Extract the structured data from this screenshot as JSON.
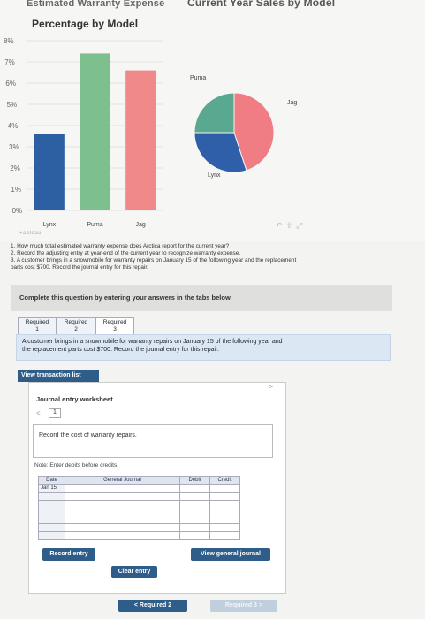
{
  "chart": {
    "left_title_partial": "Estimated Warranty Expense",
    "left_title": "Percentage by Model",
    "right_title_partial": "Current Year Sales by Model",
    "tableau_logo": "+ableau"
  },
  "chart_data": [
    {
      "type": "bar",
      "title": "Percentage by Model",
      "categories": [
        "Lynx",
        "Puma",
        "Jag"
      ],
      "values": [
        3.6,
        7.4,
        6.6
      ],
      "colors": [
        "#2d5fa3",
        "#7dbf8d",
        "#f08a8a"
      ],
      "y_ticks": [
        "8%",
        "7%",
        "6%",
        "5%",
        "4%",
        "3%",
        "2%",
        "1%",
        "0%"
      ],
      "ylim": [
        0,
        8
      ],
      "grid": true
    },
    {
      "type": "pie",
      "categories": [
        "Puma",
        "Jag",
        "Lynx"
      ],
      "values": [
        25,
        45,
        30
      ],
      "colors": [
        "#5aa88f",
        "#f07c84",
        "#2f5fa8"
      ],
      "labels": [
        "Puma",
        "Jag",
        "Lynx"
      ]
    }
  ],
  "questions": [
    "1. How much total estimated warranty expense does Arctica report for the current year?",
    "2. Record the adjusting entry at year-end of the current year to recognize warranty expense.",
    "3. A customer brings in a snowmobile for warranty repairs on January 15 of the following year and the replacement",
    "parts cost $700. Record the journal entry for this repair."
  ],
  "complete_banner": "Complete this question by entering your answers in the tabs below.",
  "tabs": [
    {
      "line1": "Required",
      "line2": "1"
    },
    {
      "line1": "Required",
      "line2": "2"
    },
    {
      "line1": "Required",
      "line2": "3"
    }
  ],
  "task_text_1": "A customer brings in a snowmobile for warranty repairs on January 15 of the following year and",
  "task_text_2": "the replacement parts cost $700. Record the journal entry for this repair.",
  "view_transaction_list": "View transaction list",
  "worksheet": {
    "title": "Journal entry worksheet",
    "page": "1",
    "instruction": "Record the cost of warranty repairs.",
    "note": "Note: Enter debits before credits.",
    "headers": {
      "date": "Date",
      "general_journal": "General Journal",
      "debit": "Debit",
      "credit": "Credit"
    },
    "first_date": "Jan 15",
    "record_entry": "Record entry",
    "clear_entry": "Clear entry",
    "view_general_journal": "View general journal"
  },
  "nav": {
    "prev": "Required 2",
    "next": "Required 3"
  }
}
